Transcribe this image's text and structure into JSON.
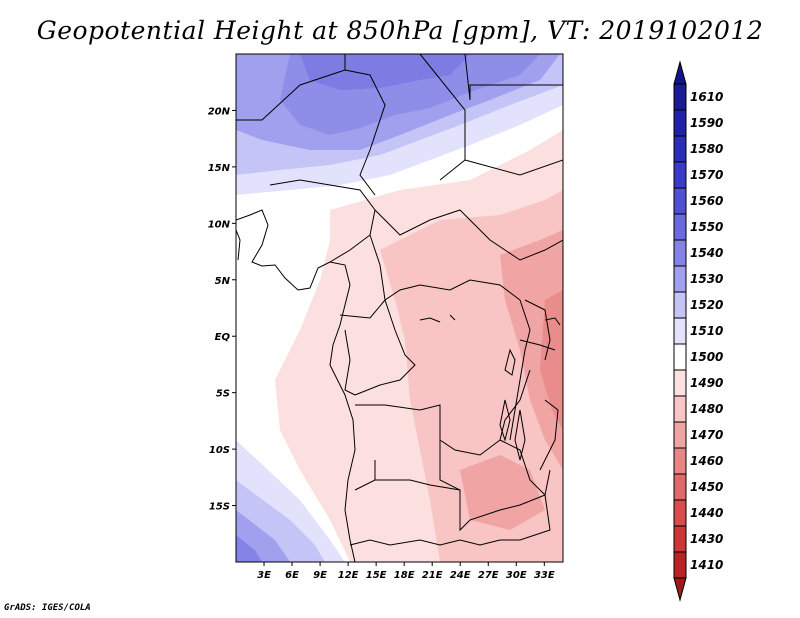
{
  "title": "Geopotential Height at 850hPa [gpm], VT: 2019102012",
  "footer": "GrADS: IGES/COLA",
  "map": {
    "lon_range": [
      0,
      35
    ],
    "lat_range": [
      -20,
      25
    ],
    "x_ticks": [
      {
        "value": 3,
        "label": "3E"
      },
      {
        "value": 6,
        "label": "6E"
      },
      {
        "value": 9,
        "label": "9E"
      },
      {
        "value": 12,
        "label": "12E"
      },
      {
        "value": 15,
        "label": "15E"
      },
      {
        "value": 18,
        "label": "18E"
      },
      {
        "value": 21,
        "label": "21E"
      },
      {
        "value": 24,
        "label": "24E"
      },
      {
        "value": 27,
        "label": "27E"
      },
      {
        "value": 30,
        "label": "30E"
      },
      {
        "value": 33,
        "label": "33E"
      }
    ],
    "y_ticks": [
      {
        "value": 20,
        "label": "20N"
      },
      {
        "value": 15,
        "label": "15N"
      },
      {
        "value": 10,
        "label": "10N"
      },
      {
        "value": 5,
        "label": "5N"
      },
      {
        "value": 0,
        "label": "EQ"
      },
      {
        "value": -5,
        "label": "5S"
      },
      {
        "value": -10,
        "label": "10S"
      },
      {
        "value": -15,
        "label": "15S"
      }
    ]
  },
  "colorbar": {
    "levels": [
      {
        "label": "1610",
        "color": "#1a1a96"
      },
      {
        "label": "1590",
        "color": "#2222a8"
      },
      {
        "label": "1580",
        "color": "#2c2cba"
      },
      {
        "label": "1570",
        "color": "#3a3ac8"
      },
      {
        "label": "1560",
        "color": "#5050d4"
      },
      {
        "label": "1550",
        "color": "#6a6ade"
      },
      {
        "label": "1540",
        "color": "#8484e6"
      },
      {
        "label": "1530",
        "color": "#a0a0ee"
      },
      {
        "label": "1520",
        "color": "#c4c4f6"
      },
      {
        "label": "1510",
        "color": "#e2e2fc"
      },
      {
        "label": "1500",
        "color": "#ffffff"
      },
      {
        "label": "1490",
        "color": "#fce0e0"
      },
      {
        "label": "1480",
        "color": "#f8c4c4"
      },
      {
        "label": "1470",
        "color": "#f0a4a4"
      },
      {
        "label": "1460",
        "color": "#e88686"
      },
      {
        "label": "1450",
        "color": "#e06868"
      },
      {
        "label": "1440",
        "color": "#d84c4c"
      },
      {
        "label": "1430",
        "color": "#cc3636"
      },
      {
        "label": "1410",
        "color": "#b82424"
      }
    ],
    "top_color": "#14148a",
    "bottom_color": "#a01a1a"
  }
}
